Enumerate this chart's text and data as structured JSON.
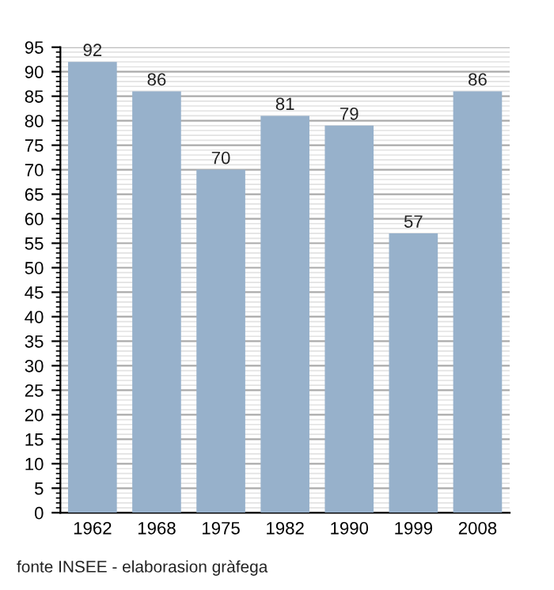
{
  "chart_data": {
    "type": "bar",
    "categories": [
      "1962",
      "1968",
      "1975",
      "1982",
      "1990",
      "1999",
      "2008"
    ],
    "values": [
      92,
      86,
      70,
      81,
      79,
      57,
      86
    ],
    "color": "#97b1cb",
    "data_labels": true,
    "ylim": [
      0,
      95
    ],
    "yticks": [
      0,
      5,
      10,
      15,
      20,
      25,
      30,
      35,
      40,
      45,
      50,
      55,
      60,
      65,
      70,
      75,
      80,
      85,
      90,
      95
    ],
    "grid": "y",
    "annotations": [
      "fonte INSEE - elaborasion gràfega"
    ]
  }
}
